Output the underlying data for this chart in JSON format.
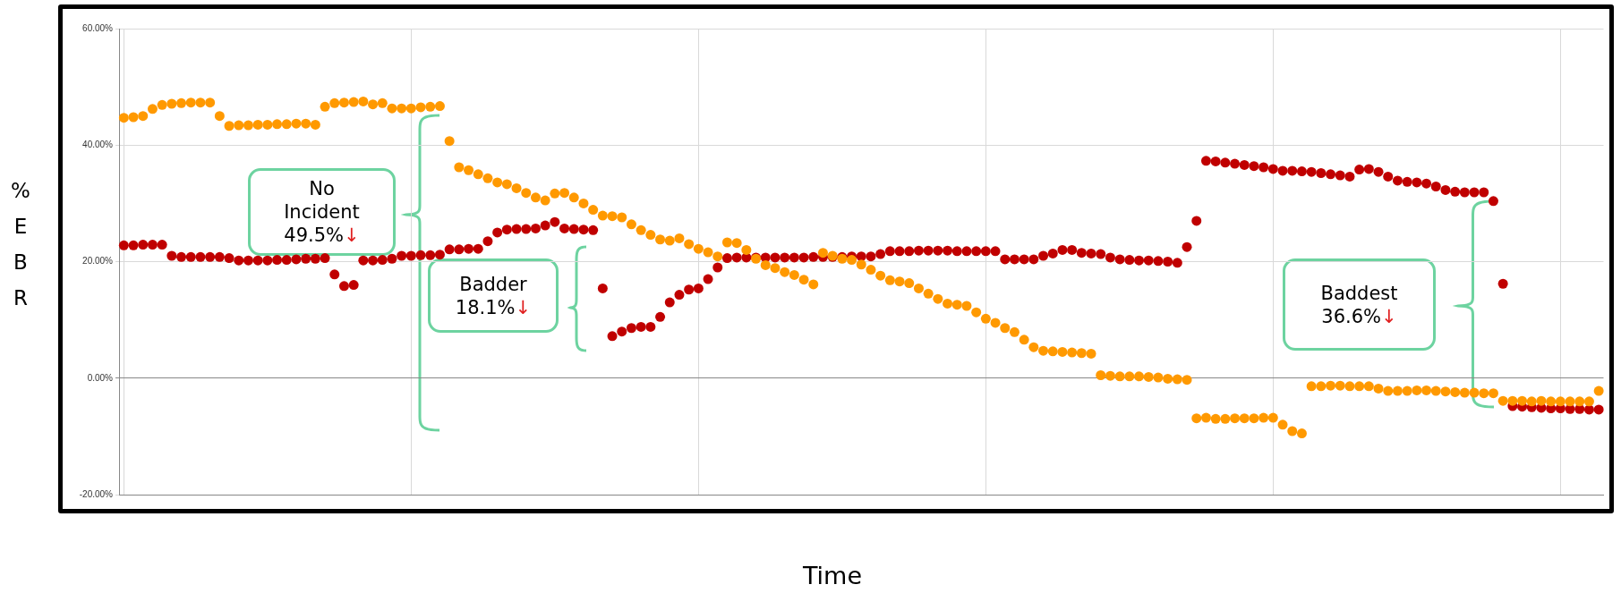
{
  "chart_data": {
    "type": "scatter",
    "ylabel": "%EBR",
    "xlabel": "Time",
    "categories": [
      null,
      null,
      null,
      null,
      null,
      null,
      null,
      null,
      null,
      null,
      null,
      null,
      null,
      null,
      null,
      null,
      null,
      null,
      null,
      null,
      null,
      null,
      null,
      null,
      null,
      null,
      null,
      null,
      null,
      null,
      null,
      null,
      null,
      null,
      null,
      null,
      null,
      null,
      null,
      null,
      null,
      null,
      null,
      null,
      null,
      null,
      null,
      null,
      null,
      null,
      null,
      null,
      null,
      null,
      null,
      null,
      null,
      null,
      null,
      null,
      null,
      null,
      null,
      null,
      null,
      null,
      null,
      null,
      null,
      null,
      null,
      null,
      null,
      null,
      null,
      null,
      null,
      null,
      null,
      null,
      null,
      null,
      null,
      null,
      null,
      null,
      null,
      null,
      null,
      null,
      null,
      null,
      null,
      null,
      null,
      null,
      null,
      null,
      null,
      null,
      null,
      null,
      null,
      null,
      null,
      null,
      null,
      null,
      null,
      null,
      null,
      null,
      null,
      null,
      null,
      null,
      null,
      null,
      null,
      null,
      null,
      null,
      null,
      null,
      null,
      null,
      null,
      null,
      null,
      null,
      null,
      null,
      null,
      null,
      null,
      null,
      null,
      null,
      null,
      null,
      null,
      null,
      null,
      null,
      null,
      null,
      null,
      null,
      null,
      null,
      null,
      null,
      null,
      null,
      null
    ],
    "series": [
      {
        "color": "#ff9900",
        "values": [
          44.7,
          44.8,
          45.0,
          46.2,
          46.9,
          47.1,
          47.2,
          47.3,
          47.3,
          47.3,
          45.0,
          43.3,
          43.4,
          43.4,
          43.5,
          43.5,
          43.6,
          43.6,
          43.7,
          43.7,
          43.5,
          46.6,
          47.2,
          47.3,
          47.4,
          47.5,
          47.0,
          47.2,
          46.3,
          46.3,
          46.3,
          46.5,
          46.6,
          46.7,
          40.7,
          36.2,
          35.7,
          35.0,
          34.3,
          33.6,
          33.3,
          32.6,
          31.8,
          31.0,
          30.5,
          31.7,
          31.8,
          31.0,
          30.0,
          28.9,
          27.9,
          27.8,
          27.6,
          26.4,
          25.4,
          24.6,
          23.8,
          23.6,
          24.0,
          23.0,
          22.2,
          21.6,
          20.9,
          23.3,
          23.2,
          22.0,
          20.5,
          19.4,
          18.9,
          18.2,
          17.7,
          16.9,
          16.1,
          21.5,
          21.0,
          20.5,
          20.3,
          19.5,
          18.6,
          17.6,
          16.8,
          16.6,
          16.3,
          15.4,
          14.5,
          13.6,
          12.8,
          12.6,
          12.4,
          11.3,
          10.2,
          9.5,
          8.6,
          7.9,
          6.6,
          5.3,
          4.7,
          4.6,
          4.5,
          4.4,
          4.3,
          4.2,
          0.5,
          0.4,
          0.3,
          0.3,
          0.3,
          0.2,
          0.1,
          -0.1,
          -0.2,
          -0.3,
          -6.9,
          -6.8,
          -7.0,
          -7.0,
          -6.9,
          -6.9,
          -6.9,
          -6.8,
          -6.8,
          -8.0,
          -9.1,
          -9.5,
          -1.4,
          -1.4,
          -1.3,
          -1.3,
          -1.4,
          -1.4,
          -1.4,
          -1.8,
          -2.2,
          -2.2,
          -2.2,
          -2.1,
          -2.1,
          -2.2,
          -2.3,
          -2.4,
          -2.5,
          -2.5,
          -2.6,
          -2.6,
          -3.9,
          -3.9,
          -3.9,
          -4.0,
          -3.9,
          -4.0,
          -4.0,
          -4.0,
          -4.0,
          -4.0,
          -2.2
        ]
      },
      {
        "color": "#c00000",
        "values": [
          22.8,
          22.8,
          22.9,
          22.9,
          22.9,
          21.0,
          20.8,
          20.8,
          20.8,
          20.8,
          20.8,
          20.6,
          20.2,
          20.2,
          20.2,
          20.2,
          20.3,
          20.3,
          20.4,
          20.5,
          20.5,
          20.6,
          17.8,
          15.8,
          16.0,
          20.2,
          20.2,
          20.3,
          20.5,
          21.0,
          21.0,
          21.1,
          21.1,
          21.2,
          22.1,
          22.1,
          22.2,
          22.2,
          23.5,
          25.0,
          25.5,
          25.6,
          25.6,
          25.7,
          26.2,
          26.8,
          25.7,
          25.6,
          25.5,
          25.4,
          15.4,
          7.2,
          8.0,
          8.6,
          8.8,
          8.8,
          10.5,
          13.0,
          14.3,
          15.2,
          15.4,
          17.0,
          19.0,
          20.6,
          20.7,
          20.7,
          20.7,
          20.7,
          20.7,
          20.7,
          20.7,
          20.7,
          20.8,
          20.8,
          20.8,
          20.8,
          20.9,
          20.9,
          20.9,
          21.3,
          21.8,
          21.8,
          21.8,
          21.9,
          21.9,
          21.9,
          21.9,
          21.8,
          21.8,
          21.8,
          21.8,
          21.8,
          20.4,
          20.4,
          20.4,
          20.4,
          21.0,
          21.4,
          22.0,
          22.0,
          21.5,
          21.4,
          21.3,
          20.7,
          20.4,
          20.3,
          20.2,
          20.2,
          20.1,
          20.0,
          19.8,
          22.5,
          27.0,
          37.3,
          37.2,
          37.0,
          36.8,
          36.6,
          36.4,
          36.2,
          35.9,
          35.6,
          35.6,
          35.5,
          35.4,
          35.2,
          35.0,
          34.8,
          34.6,
          35.8,
          35.9,
          35.4,
          34.6,
          33.9,
          33.7,
          33.6,
          33.4,
          32.9,
          32.3,
          32.0,
          31.9,
          31.9,
          31.9,
          30.4,
          16.2,
          -4.8,
          -4.9,
          -5.0,
          -5.1,
          -5.2,
          -5.2,
          -5.3,
          -5.3,
          -5.4,
          -5.4
        ]
      }
    ],
    "ylim": [
      -20,
      60
    ],
    "yticks": [
      {
        "value": -20,
        "label": "-20.00%"
      },
      {
        "value": 0,
        "label": "0.00%"
      },
      {
        "value": 20,
        "label": "20.00%"
      },
      {
        "value": 40,
        "label": "40.00%"
      },
      {
        "value": 60,
        "label": "60.00%"
      }
    ],
    "grid": true,
    "tick_labels": "y",
    "marker": "circle",
    "annotations": [
      "No Incident 49.5%↓",
      "Badder 18.1%↓",
      "Baddest 36.6%↓"
    ]
  }
}
